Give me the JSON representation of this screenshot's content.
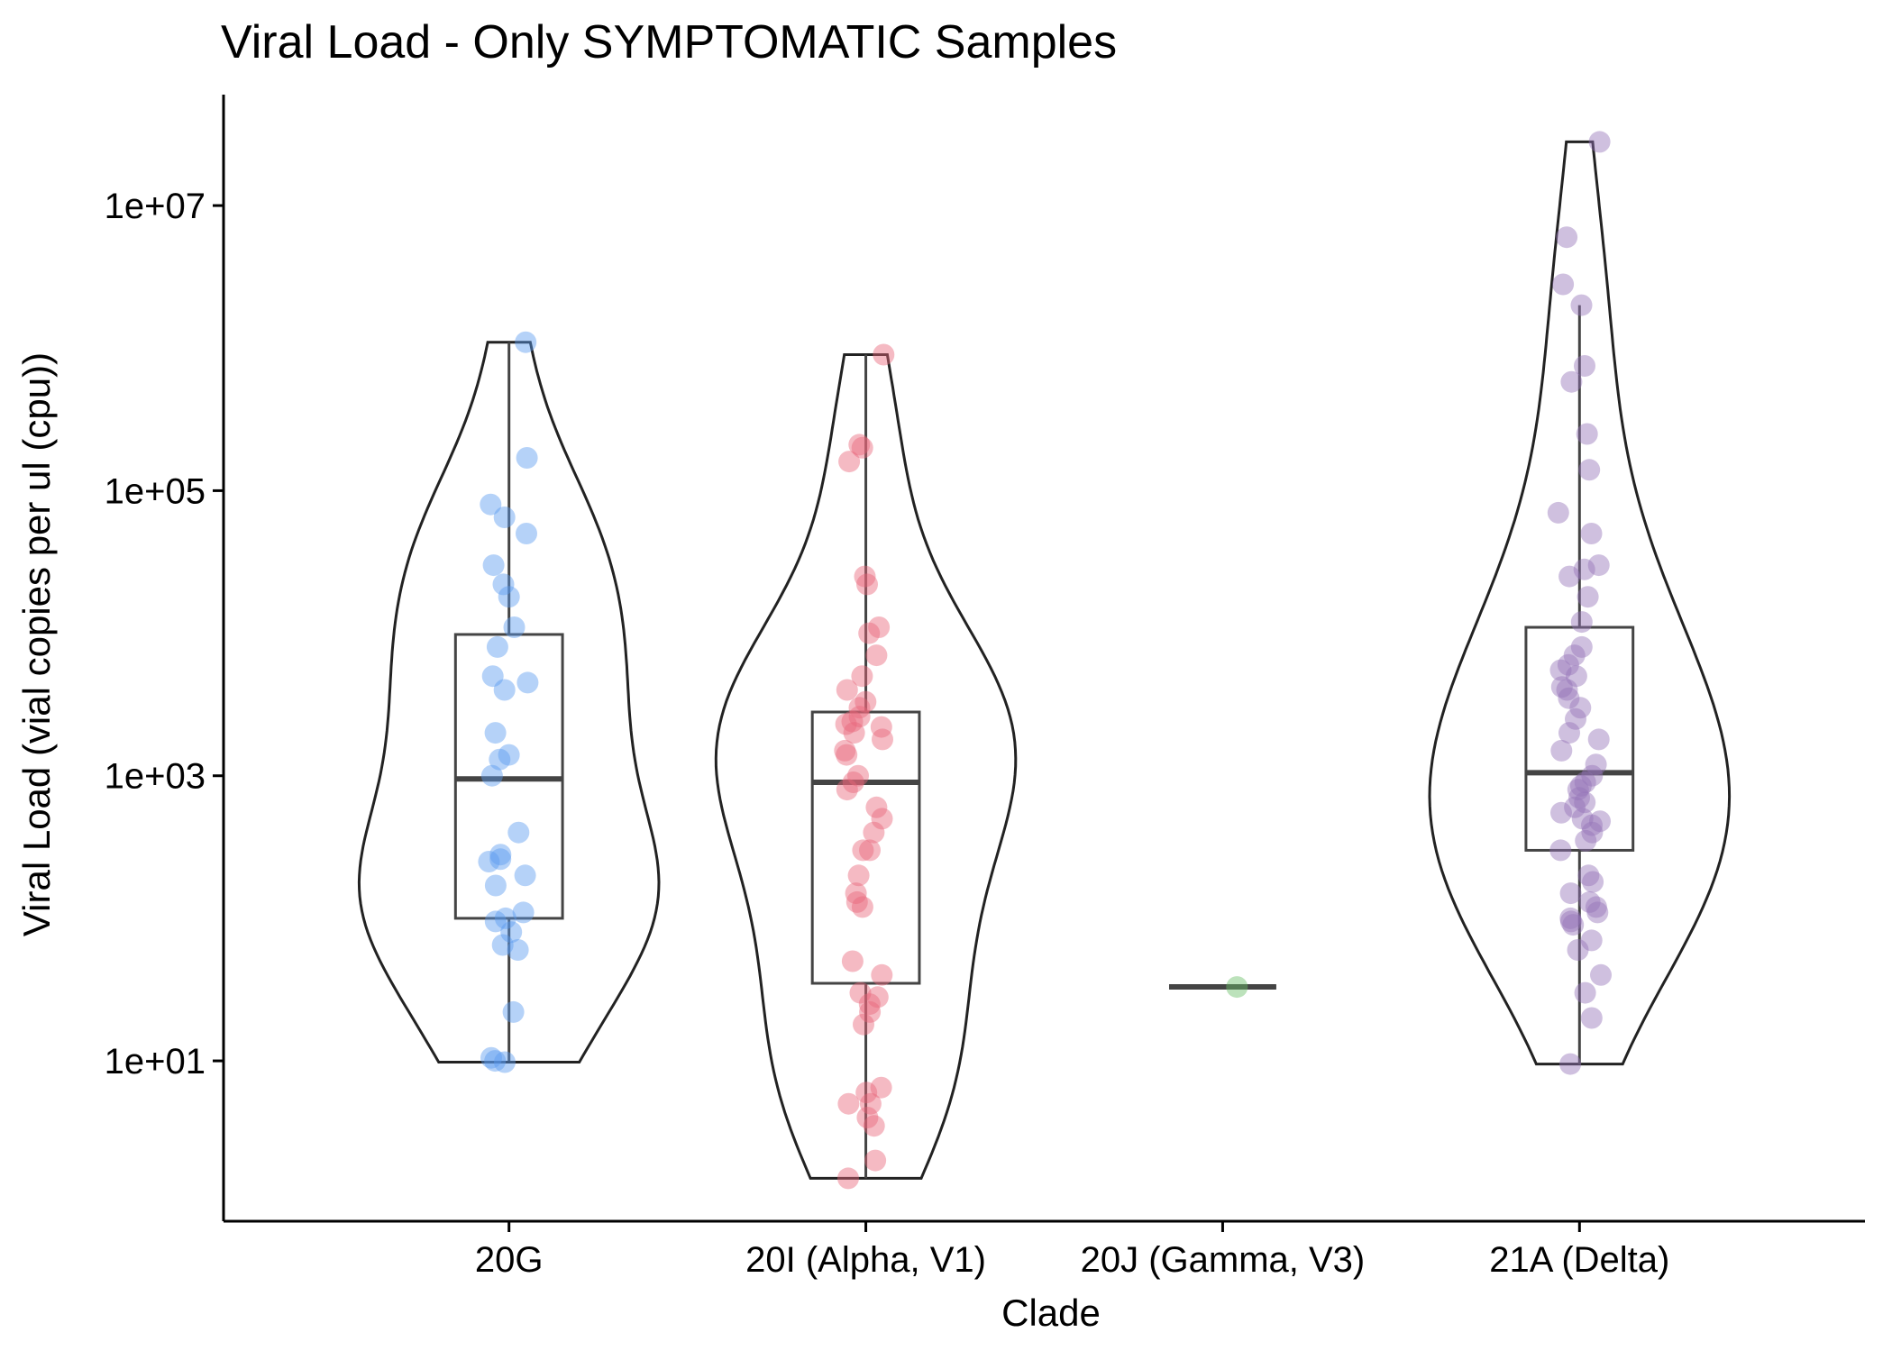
{
  "chart_data": {
    "type": "violin",
    "title": "Viral Load - Only SYMPTOMATIC Samples",
    "xlabel": "Clade",
    "ylabel": "Viral Load (vial copies per ul (cpu))",
    "y_scale": "log10",
    "y_ticks": [
      "1e+01",
      "1e+03",
      "1e+05",
      "1e+07"
    ],
    "y_tick_values": [
      10,
      1000,
      100000,
      10000000
    ],
    "ylim": [
      0.75,
      60000000
    ],
    "categories": [
      "20G",
      "20I (Alpha, V1)",
      "20J (Gamma, V3)",
      "21A (Delta)"
    ],
    "colors": {
      "20G": "#5b9bf0",
      "20I (Alpha, V1)": "#e8677a",
      "20J (Gamma, V3)": "#6abf69",
      "21A (Delta)": "#9573b8"
    },
    "grid": false,
    "legend": "none",
    "series": [
      {
        "name": "20G",
        "box": {
          "q1": 100,
          "median": 950,
          "q3": 9800,
          "whisker_low": 10,
          "whisker_high": 1100000
        },
        "points": [
          1100000,
          170000,
          80000,
          65000,
          50000,
          30000,
          22000,
          18000,
          11000,
          8000,
          5000,
          4500,
          4000,
          2000,
          1400,
          1300,
          1000,
          400,
          280,
          260,
          250,
          200,
          170,
          110,
          100,
          95,
          80,
          65,
          60,
          22,
          10.5,
          10,
          9.8
        ]
      },
      {
        "name": "20I (Alpha, V1)",
        "box": {
          "q1": 35,
          "median": 900,
          "q3": 2800,
          "whisker_low": 1.5,
          "whisker_high": 900000
        },
        "points": [
          900000,
          210000,
          200000,
          160000,
          25000,
          22000,
          11000,
          10000,
          7000,
          5000,
          4000,
          3300,
          3000,
          2600,
          2400,
          2300,
          2200,
          2000,
          1800,
          1500,
          1400,
          1000,
          900,
          800,
          600,
          500,
          400,
          300,
          300,
          200,
          150,
          130,
          120,
          50,
          40,
          30,
          28,
          25,
          22,
          18,
          6.5,
          6,
          5,
          5,
          4,
          3.5,
          2,
          1.5
        ]
      },
      {
        "name": "20J (Gamma, V3)",
        "box": {
          "q1": 33,
          "median": 33,
          "q3": 33,
          "whisker_low": 33,
          "whisker_high": 33
        },
        "points": [
          33
        ]
      },
      {
        "name": "21A (Delta)",
        "box": {
          "q1": 300,
          "median": 1050,
          "q3": 11000,
          "whisker_low": 9.5,
          "whisker_high": 2000000
        },
        "points": [
          28000000,
          6000000,
          2800000,
          2000000,
          750000,
          580000,
          250000,
          140000,
          70000,
          50000,
          30000,
          28000,
          25000,
          18000,
          12000,
          8000,
          7000,
          6000,
          5500,
          5000,
          4200,
          4000,
          3500,
          3000,
          2500,
          2000,
          1800,
          1500,
          1200,
          1000,
          900,
          850,
          800,
          700,
          650,
          600,
          550,
          500,
          480,
          450,
          400,
          350,
          300,
          200,
          180,
          150,
          130,
          120,
          110,
          100,
          95,
          90,
          70,
          60,
          40,
          30,
          20,
          9.5
        ]
      }
    ]
  }
}
